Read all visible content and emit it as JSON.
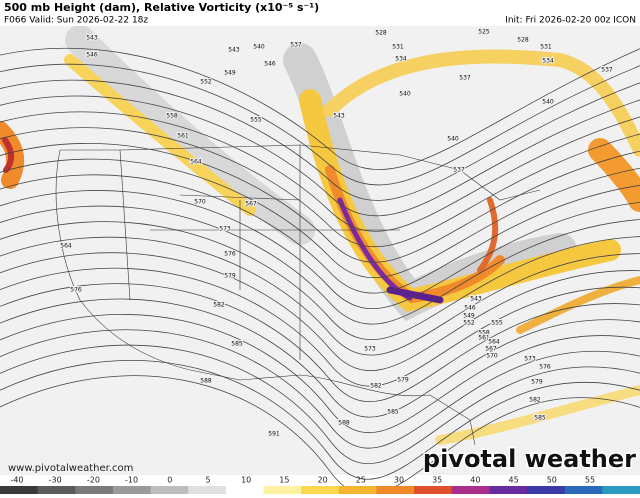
{
  "header": {
    "title": "500 mb Height (dam), Relative Vorticity (x10⁻⁵ s⁻¹)",
    "valid": "F066 Valid: Sun 2026-02-22 18z",
    "init": "Init: Fri 2026-02-20 00z ICON"
  },
  "contour_labels": [
    543,
    546,
    543,
    546,
    549,
    552,
    540,
    537,
    528,
    531,
    534,
    525,
    528,
    531,
    534,
    537,
    537,
    540,
    540,
    555,
    558,
    561,
    564,
    543,
    540,
    537,
    570,
    567,
    573,
    576,
    579,
    564,
    576,
    582,
    585,
    588,
    585,
    588,
    591,
    582,
    579,
    573,
    543,
    546,
    549,
    552,
    555,
    558,
    561,
    564,
    567,
    570,
    573,
    576,
    579,
    582,
    585
  ],
  "colorbar": {
    "ticks": [
      -40,
      -30,
      -20,
      -10,
      0,
      5,
      10,
      15,
      20,
      25,
      30,
      35,
      40,
      45,
      50,
      55
    ]
  },
  "footer": {
    "website": "www.pivotalweather.com",
    "logo": "pivotal weather"
  }
}
